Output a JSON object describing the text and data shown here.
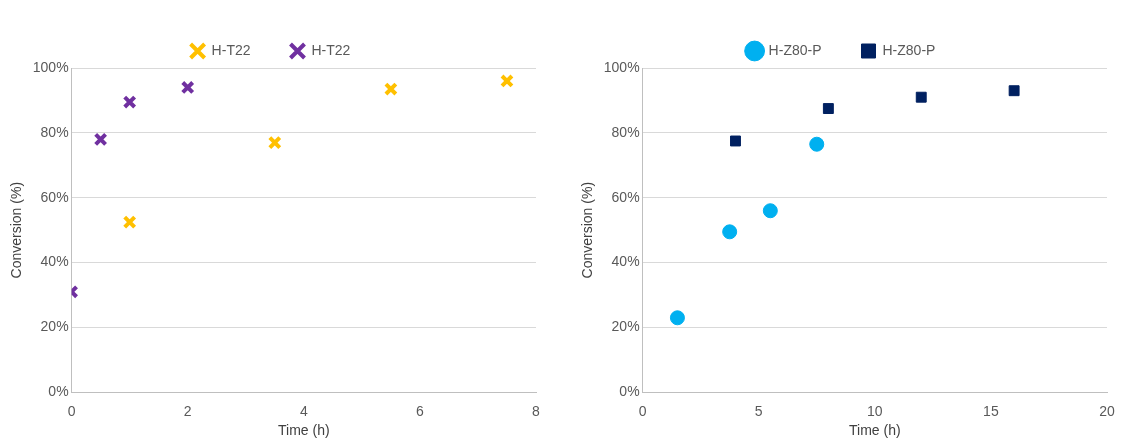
{
  "chart_data": [
    {
      "type": "scatter",
      "xlabel": "Time (h)",
      "ylabel": "Conversion (%)",
      "xlim": [
        0,
        8
      ],
      "xticks": [
        0,
        2,
        4,
        6,
        8
      ],
      "ylim": [
        0,
        100
      ],
      "yticks": [
        {
          "value": 0,
          "label": "0%"
        },
        {
          "value": 20,
          "label": "20%"
        },
        {
          "value": 40,
          "label": "40%"
        },
        {
          "value": 60,
          "label": "60%"
        },
        {
          "value": 80,
          "label": "80%"
        },
        {
          "value": 100,
          "label": "100%"
        }
      ],
      "grid": "y",
      "legend": "top",
      "series": [
        {
          "name": "H-T22",
          "color": "#ffc000",
          "marker": "cross",
          "x": [
            1,
            3.5,
            5.5,
            7.5
          ],
          "values": [
            52.5,
            77,
            93.5,
            96
          ]
        },
        {
          "name": "H-T22",
          "color": "#7030a0",
          "marker": "cross",
          "x": [
            0,
            0.5,
            1,
            2
          ],
          "values": [
            31,
            78,
            89.5,
            94
          ]
        }
      ]
    },
    {
      "type": "scatter",
      "xlabel": "Time (h)",
      "ylabel": "Conversion (%)",
      "xlim": [
        0,
        20
      ],
      "xticks": [
        0,
        5,
        10,
        15,
        20
      ],
      "ylim": [
        0,
        100
      ],
      "yticks": [
        {
          "value": 0,
          "label": "0%"
        },
        {
          "value": 20,
          "label": "20%"
        },
        {
          "value": 40,
          "label": "40%"
        },
        {
          "value": 60,
          "label": "60%"
        },
        {
          "value": 80,
          "label": "80%"
        },
        {
          "value": 100,
          "label": "100%"
        }
      ],
      "grid": "y",
      "legend": "top",
      "series": [
        {
          "name": "H-Z80-P",
          "color": "#00b0f0",
          "marker": "circle",
          "x": [
            1.5,
            3.75,
            5.5,
            7.5
          ],
          "values": [
            23,
            49.5,
            56,
            76.5
          ]
        },
        {
          "name": "H-Z80-P",
          "color": "#002060",
          "marker": "square",
          "x": [
            4,
            8,
            12,
            16
          ],
          "values": [
            77.5,
            87.5,
            91,
            93
          ]
        }
      ]
    }
  ]
}
